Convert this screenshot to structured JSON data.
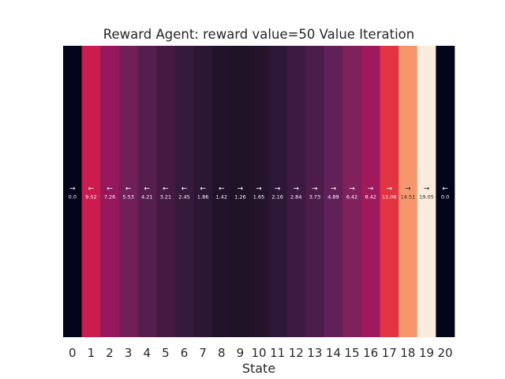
{
  "chart_data": {
    "type": "heatmap",
    "title": "Reward Agent: reward value=50 Value Iteration",
    "xlabel": "State",
    "ylabel": "",
    "colormap": "rocket",
    "color_range": [
      0.0,
      19.05
    ],
    "grid": false,
    "legend": "none",
    "categories": [
      "0",
      "1",
      "2",
      "3",
      "4",
      "5",
      "6",
      "7",
      "8",
      "9",
      "10",
      "11",
      "12",
      "13",
      "14",
      "15",
      "16",
      "17",
      "18",
      "19",
      "20"
    ],
    "values": [
      0.0,
      9.52,
      7.26,
      5.53,
      4.21,
      3.21,
      2.45,
      1.86,
      1.42,
      1.26,
      1.65,
      2.16,
      2.84,
      3.73,
      4.89,
      6.42,
      8.42,
      11.06,
      14.51,
      19.05,
      0.0
    ],
    "value_labels": [
      "0.0",
      "9.52",
      "7.26",
      "5.53",
      "4.21",
      "3.21",
      "2.45",
      "1.86",
      "1.42",
      "1.26",
      "1.65",
      "2.16",
      "2.84",
      "3.73",
      "4.89",
      "6.42",
      "8.42",
      "11.06",
      "14.51",
      "19.05",
      "0.0"
    ],
    "policy_arrows": [
      "→",
      "←",
      "←",
      "←",
      "←",
      "←",
      "←",
      "←",
      "←",
      "→",
      "→",
      "→",
      "→",
      "→",
      "→",
      "→",
      "→",
      "→",
      "→",
      "→",
      "←"
    ]
  },
  "colors": {
    "cells": [
      "#03051a",
      "#cb1b4f",
      "#95185c",
      "#701f57",
      "#561e4f",
      "#441a43",
      "#361a3c",
      "#2b1734",
      "#21132a",
      "#1e1226",
      "#231429",
      "#2d1737",
      "#3c1a41",
      "#4c1d4b",
      "#62205a",
      "#80205c",
      "#a0185d",
      "#e13342",
      "#f6966c",
      "#faebdd",
      "#03051a"
    ],
    "text_light": "#ffffff",
    "text_dark": "#262626"
  }
}
